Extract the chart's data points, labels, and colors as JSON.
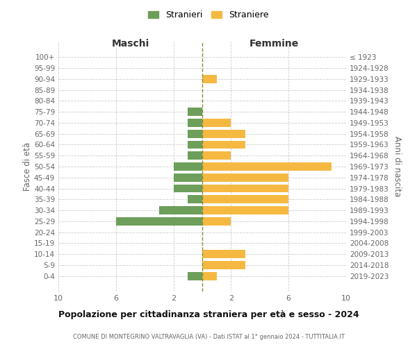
{
  "age_groups": [
    "100+",
    "95-99",
    "90-94",
    "85-89",
    "80-84",
    "75-79",
    "70-74",
    "65-69",
    "60-64",
    "55-59",
    "50-54",
    "45-49",
    "40-44",
    "35-39",
    "30-34",
    "25-29",
    "20-24",
    "15-19",
    "10-14",
    "5-9",
    "0-4"
  ],
  "birth_years": [
    "≤ 1923",
    "1924-1928",
    "1929-1933",
    "1934-1938",
    "1939-1943",
    "1944-1948",
    "1949-1953",
    "1954-1958",
    "1959-1963",
    "1964-1968",
    "1969-1973",
    "1974-1978",
    "1979-1983",
    "1984-1988",
    "1989-1993",
    "1994-1998",
    "1999-2003",
    "2004-2008",
    "2009-2013",
    "2014-2018",
    "2019-2023"
  ],
  "males": [
    0,
    0,
    0,
    0,
    0,
    1,
    1,
    1,
    1,
    1,
    2,
    2,
    2,
    1,
    3,
    6,
    0,
    0,
    0,
    0,
    1
  ],
  "females": [
    0,
    0,
    1,
    0,
    0,
    0,
    2,
    3,
    3,
    2,
    9,
    6,
    6,
    6,
    6,
    2,
    0,
    0,
    3,
    3,
    1
  ],
  "male_color": "#6d9e5a",
  "female_color": "#f5b942",
  "title": "Popolazione per cittadinanza straniera per età e sesso - 2024",
  "subtitle": "COMUNE DI MONTEGRINO VALTRAVAGLIA (VA) - Dati ISTAT al 1° gennaio 2024 - TUTTITALIA.IT",
  "xlabel_left": "Maschi",
  "xlabel_right": "Femmine",
  "ylabel_left": "Fasce di età",
  "ylabel_right": "Anni di nascita",
  "legend_stranieri": "Stranieri",
  "legend_straniere": "Straniere",
  "xlim": 10,
  "background_color": "#ffffff",
  "grid_color": "#cccccc",
  "bar_height": 0.75,
  "dashed_line_color": "#8b8b3a"
}
